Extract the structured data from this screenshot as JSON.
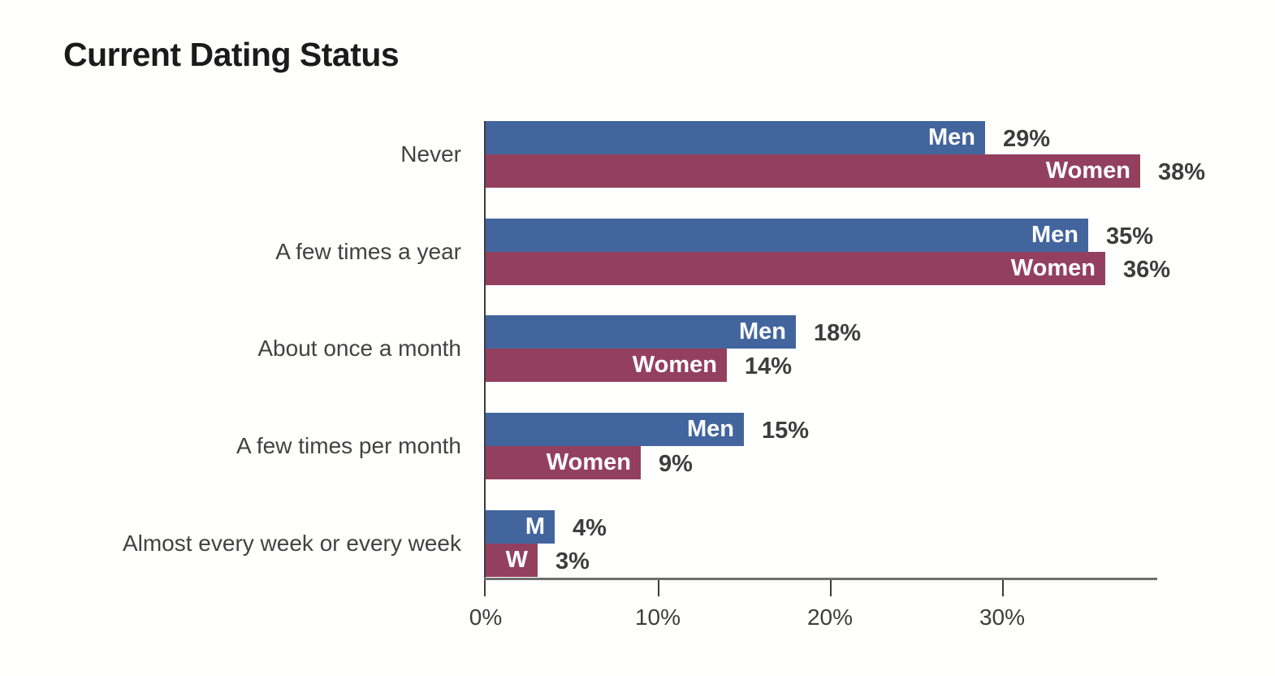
{
  "title": "Current Dating Status",
  "chart_data": {
    "type": "bar",
    "orientation": "horizontal",
    "title": "Current Dating Status",
    "categories": [
      "Never",
      "A few times a year",
      "About once a month",
      "A few times per month",
      "Almost every week or every week"
    ],
    "series": [
      {
        "name": "Men",
        "color": "#42659D",
        "values": [
          29,
          35,
          18,
          15,
          4
        ],
        "bar_labels": [
          "Men",
          "Men",
          "Men",
          "Men",
          "M"
        ],
        "value_labels": [
          "29%",
          "35%",
          "18%",
          "15%",
          "4%"
        ]
      },
      {
        "name": "Women",
        "color": "#93405E",
        "values": [
          38,
          36,
          14,
          9,
          3
        ],
        "bar_labels": [
          "Women",
          "Women",
          "Women",
          "Women",
          "W"
        ],
        "value_labels": [
          "38%",
          "36%",
          "14%",
          "9%",
          "3%"
        ]
      }
    ],
    "value_suffix": "%",
    "x_tick_labels": [
      "0%",
      "10%",
      "20%",
      "30%"
    ],
    "x_tick_values": [
      0,
      10,
      20,
      30
    ],
    "xlim": [
      0,
      39
    ],
    "grid": false,
    "legend": "labels-inside-bars",
    "colors": {
      "title_text": "#1b1b1b",
      "category_text": "#424242",
      "value_text": "#3d3d3d",
      "bar_label_text": "#ffffff",
      "axis_line": "#6e6e6e",
      "tick_line": "#3c3c3c",
      "background": "#fffffe"
    }
  }
}
